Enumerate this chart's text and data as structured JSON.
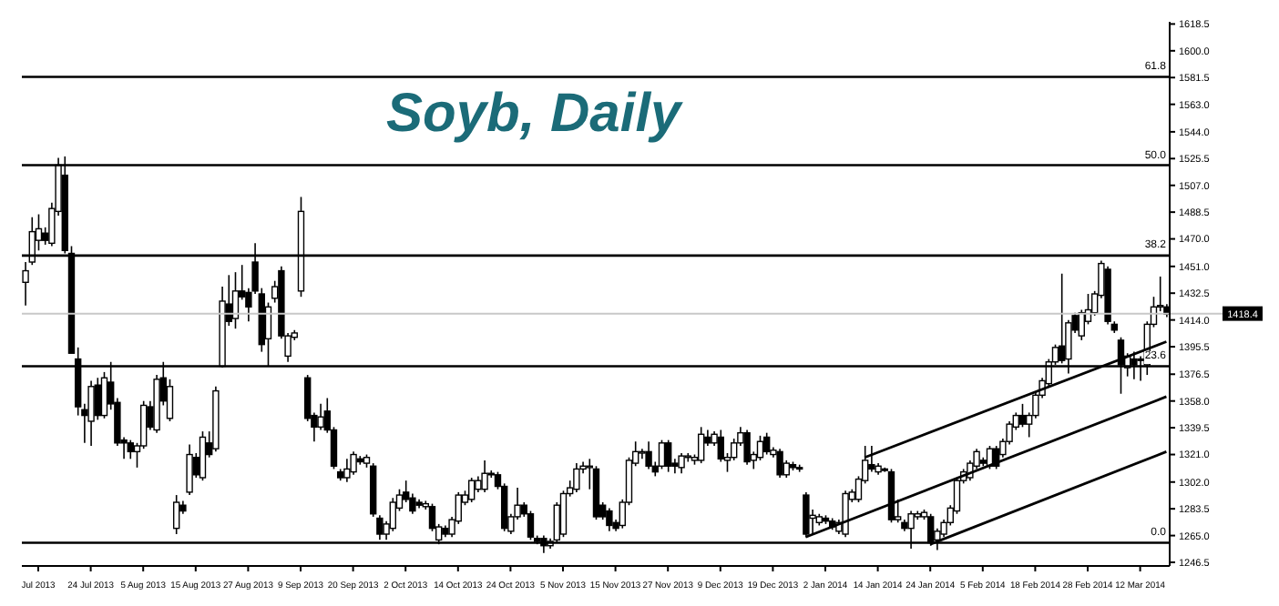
{
  "chart_data": {
    "type": "candlestick",
    "title": "Soyb, Daily",
    "color": "#000000",
    "categories": [
      null,
      null,
      "Jul 2013",
      null,
      null,
      null,
      null,
      null,
      null,
      null,
      "24 Jul 2013",
      null,
      null,
      null,
      null,
      null,
      null,
      null,
      "5 Aug 2013",
      null,
      null,
      null,
      null,
      null,
      null,
      null,
      "15 Aug 2013",
      null,
      null,
      null,
      null,
      null,
      null,
      null,
      "27 Aug 2013",
      null,
      null,
      null,
      null,
      null,
      null,
      null,
      "9 Sep 2013",
      null,
      null,
      null,
      null,
      null,
      null,
      null,
      "20 Sep 2013",
      null,
      null,
      null,
      null,
      null,
      null,
      null,
      "2 Oct 2013",
      null,
      null,
      null,
      null,
      null,
      null,
      null,
      "14 Oct 2013",
      null,
      null,
      null,
      null,
      null,
      null,
      null,
      "24 Oct 2013",
      null,
      null,
      null,
      null,
      null,
      null,
      null,
      "5 Nov 2013",
      null,
      null,
      null,
      null,
      null,
      null,
      null,
      "15 Nov 2013",
      null,
      null,
      null,
      null,
      null,
      null,
      null,
      "27 Nov 2013",
      null,
      null,
      null,
      null,
      null,
      null,
      null,
      "9 Dec 2013",
      null,
      null,
      null,
      null,
      null,
      null,
      null,
      "19 Dec 2013",
      null,
      null,
      null,
      null,
      null,
      null,
      null,
      "2 Jan 2014",
      null,
      null,
      null,
      null,
      null,
      null,
      null,
      "14 Jan 2014",
      null,
      null,
      null,
      null,
      null,
      null,
      null,
      "24 Jan 2014",
      null,
      null,
      null,
      null,
      null,
      null,
      null,
      "5 Feb 2014",
      null,
      null,
      null,
      null,
      null,
      null,
      null,
      "18 Feb 2014",
      null,
      null,
      null,
      null,
      null,
      null,
      null,
      "28 Feb 2014",
      null,
      null,
      null,
      null,
      null,
      null,
      null,
      "12 Mar 2014",
      null,
      null,
      null,
      null
    ],
    "ohlc": [
      [
        1440,
        1454,
        1424,
        1448
      ],
      [
        1454,
        1485,
        1452,
        1475
      ],
      [
        1469,
        1487,
        1462,
        1477
      ],
      [
        1474,
        1478,
        1466,
        1469
      ],
      [
        1467,
        1495,
        1465,
        1491
      ],
      [
        1489,
        1526,
        1486,
        1521
      ],
      [
        1514,
        1527,
        1460,
        1462
      ],
      [
        1460,
        1465,
        1391,
        1391
      ],
      [
        1387,
        1395,
        1348,
        1354
      ],
      [
        1352,
        1356,
        1329,
        1348
      ],
      [
        1344,
        1372,
        1327,
        1368
      ],
      [
        1369,
        1374,
        1345,
        1348
      ],
      [
        1348,
        1378,
        1346,
        1374
      ],
      [
        1371,
        1385,
        1352,
        1356
      ],
      [
        1357,
        1360,
        1327,
        1329
      ],
      [
        1331,
        1333,
        1318,
        1329
      ],
      [
        1329,
        1331,
        1318,
        1323
      ],
      [
        1323,
        1329,
        1312,
        1327
      ],
      [
        1327,
        1358,
        1325,
        1355
      ],
      [
        1354,
        1358,
        1338,
        1340
      ],
      [
        1338,
        1376,
        1336,
        1373
      ],
      [
        1374,
        1385,
        1355,
        1358
      ],
      [
        1346,
        1373,
        1344,
        1368
      ],
      [
        1270,
        1293,
        1266,
        1288
      ],
      [
        1286,
        1289,
        1280,
        1282
      ],
      [
        1295,
        1328,
        1293,
        1321
      ],
      [
        1319,
        1322,
        1305,
        1307
      ],
      [
        1305,
        1337,
        1303,
        1333
      ],
      [
        1329,
        1337,
        1319,
        1321
      ],
      [
        1325,
        1368,
        1323,
        1365
      ],
      [
        1382,
        1437,
        1381,
        1427
      ],
      [
        1425,
        1445,
        1410,
        1413
      ],
      [
        1415,
        1447,
        1408,
        1434
      ],
      [
        1434,
        1452,
        1428,
        1430
      ],
      [
        1433,
        1436,
        1413,
        1423
      ],
      [
        1454,
        1467,
        1432,
        1434
      ],
      [
        1432,
        1436,
        1392,
        1397
      ],
      [
        1401,
        1426,
        1382,
        1423
      ],
      [
        1429,
        1441,
        1426,
        1437
      ],
      [
        1448,
        1451,
        1401,
        1403
      ],
      [
        1389,
        1405,
        1385,
        1403
      ],
      [
        1402,
        1407,
        1400,
        1405
      ],
      [
        1434,
        1499,
        1430,
        1489
      ],
      [
        1374,
        1376,
        1344,
        1346
      ],
      [
        1348,
        1350,
        1330,
        1340
      ],
      [
        1340,
        1356,
        1338,
        1347
      ],
      [
        1351,
        1360,
        1336,
        1338
      ],
      [
        1338,
        1340,
        1311,
        1313
      ],
      [
        1309,
        1311,
        1303,
        1305
      ],
      [
        1305,
        1318,
        1302,
        1311
      ],
      [
        1309,
        1323,
        1307,
        1321
      ],
      [
        1318,
        1320,
        1314,
        1316
      ],
      [
        1315,
        1321,
        1312,
        1319
      ],
      [
        1313,
        1315,
        1278,
        1280
      ],
      [
        1277,
        1279,
        1262,
        1266
      ],
      [
        1266,
        1275,
        1262,
        1273
      ],
      [
        1270,
        1291,
        1268,
        1288
      ],
      [
        1284,
        1297,
        1282,
        1293
      ],
      [
        1295,
        1303,
        1288,
        1290
      ],
      [
        1291,
        1294,
        1280,
        1282
      ],
      [
        1288,
        1290,
        1284,
        1286
      ],
      [
        1285,
        1289,
        1283,
        1287
      ],
      [
        1285,
        1287,
        1268,
        1270
      ],
      [
        1262,
        1273,
        1259,
        1271
      ],
      [
        1270,
        1272,
        1264,
        1266
      ],
      [
        1266,
        1278,
        1264,
        1276
      ],
      [
        1275,
        1295,
        1273,
        1293
      ],
      [
        1288,
        1296,
        1286,
        1293
      ],
      [
        1290,
        1305,
        1288,
        1303
      ],
      [
        1297,
        1306,
        1295,
        1303
      ],
      [
        1297,
        1317,
        1295,
        1308
      ],
      [
        1308,
        1310,
        1305,
        1307
      ],
      [
        1307,
        1309,
        1297,
        1299
      ],
      [
        1299,
        1301,
        1268,
        1270
      ],
      [
        1268,
        1280,
        1266,
        1278
      ],
      [
        1278,
        1298,
        1276,
        1286
      ],
      [
        1286,
        1288,
        1278,
        1280
      ],
      [
        1280,
        1282,
        1262,
        1264
      ],
      [
        1263,
        1265,
        1259,
        1261
      ],
      [
        1263,
        1265,
        1253,
        1258
      ],
      [
        1258,
        1263,
        1256,
        1261
      ],
      [
        1262,
        1288,
        1260,
        1286
      ],
      [
        1266,
        1296,
        1264,
        1294
      ],
      [
        1294,
        1303,
        1292,
        1298
      ],
      [
        1297,
        1315,
        1295,
        1311
      ],
      [
        1311,
        1316,
        1308,
        1313
      ],
      [
        1312,
        1318,
        1297,
        1313
      ],
      [
        1311,
        1313,
        1276,
        1278
      ],
      [
        1286,
        1288,
        1276,
        1278
      ],
      [
        1282,
        1284,
        1268,
        1272
      ],
      [
        1274,
        1276,
        1268,
        1270
      ],
      [
        1272,
        1290,
        1270,
        1288
      ],
      [
        1288,
        1319,
        1286,
        1317
      ],
      [
        1315,
        1330,
        1313,
        1323
      ],
      [
        1322,
        1325,
        1318,
        1323
      ],
      [
        1323,
        1330,
        1311,
        1313
      ],
      [
        1313,
        1316,
        1306,
        1309
      ],
      [
        1313,
        1331,
        1311,
        1329
      ],
      [
        1329,
        1331,
        1309,
        1313
      ],
      [
        1315,
        1318,
        1308,
        1313
      ],
      [
        1312,
        1322,
        1308,
        1320
      ],
      [
        1319,
        1322,
        1316,
        1320
      ],
      [
        1317,
        1321,
        1314,
        1319
      ],
      [
        1317,
        1340,
        1315,
        1335
      ],
      [
        1333,
        1338,
        1327,
        1329
      ],
      [
        1329,
        1337,
        1327,
        1335
      ],
      [
        1333,
        1338,
        1316,
        1318
      ],
      [
        1317,
        1322,
        1309,
        1319
      ],
      [
        1319,
        1332,
        1317,
        1329
      ],
      [
        1329,
        1340,
        1327,
        1336
      ],
      [
        1336,
        1338,
        1314,
        1316
      ],
      [
        1317,
        1323,
        1311,
        1321
      ],
      [
        1319,
        1334,
        1317,
        1330
      ],
      [
        1333,
        1336,
        1321,
        1323
      ],
      [
        1321,
        1326,
        1319,
        1324
      ],
      [
        1323,
        1325,
        1305,
        1307
      ],
      [
        1307,
        1317,
        1305,
        1315
      ],
      [
        1314,
        1316,
        1310,
        1312
      ],
      [
        1312,
        1314,
        1309,
        1311
      ],
      [
        1293,
        1295,
        1264,
        1266
      ],
      [
        1277,
        1283,
        1266,
        1279
      ],
      [
        1274,
        1280,
        1272,
        1278
      ],
      [
        1277,
        1279,
        1273,
        1275
      ],
      [
        1275,
        1277,
        1269,
        1271
      ],
      [
        1268,
        1276,
        1266,
        1274
      ],
      [
        1266,
        1296,
        1264,
        1294
      ],
      [
        1290,
        1297,
        1288,
        1295
      ],
      [
        1290,
        1306,
        1288,
        1304
      ],
      [
        1303,
        1327,
        1301,
        1317
      ],
      [
        1314,
        1327,
        1309,
        1311
      ],
      [
        1309,
        1315,
        1307,
        1313
      ],
      [
        1311,
        1312,
        1309,
        1310
      ],
      [
        1309,
        1311,
        1274,
        1276
      ],
      [
        1276,
        1290,
        1274,
        1278
      ],
      [
        1274,
        1276,
        1268,
        1270
      ],
      [
        1270,
        1282,
        1256,
        1280
      ],
      [
        1278,
        1282,
        1276,
        1280
      ],
      [
        1278,
        1283,
        1276,
        1281
      ],
      [
        1278,
        1280,
        1258,
        1260
      ],
      [
        1262,
        1270,
        1255,
        1268
      ],
      [
        1266,
        1276,
        1264,
        1274
      ],
      [
        1274,
        1286,
        1272,
        1284
      ],
      [
        1282,
        1305,
        1280,
        1303
      ],
      [
        1303,
        1311,
        1301,
        1309
      ],
      [
        1305,
        1317,
        1303,
        1315
      ],
      [
        1313,
        1325,
        1311,
        1323
      ],
      [
        1317,
        1319,
        1313,
        1315
      ],
      [
        1313,
        1327,
        1311,
        1325
      ],
      [
        1325,
        1327,
        1311,
        1313
      ],
      [
        1321,
        1332,
        1319,
        1330
      ],
      [
        1330,
        1344,
        1328,
        1342
      ],
      [
        1340,
        1350,
        1338,
        1348
      ],
      [
        1348,
        1356,
        1340,
        1342
      ],
      [
        1342,
        1350,
        1333,
        1348
      ],
      [
        1348,
        1364,
        1346,
        1362
      ],
      [
        1362,
        1374,
        1360,
        1372
      ],
      [
        1370,
        1387,
        1368,
        1385
      ],
      [
        1385,
        1397,
        1383,
        1395
      ],
      [
        1396,
        1446,
        1384,
        1386
      ],
      [
        1387,
        1414,
        1377,
        1412
      ],
      [
        1417,
        1419,
        1405,
        1407
      ],
      [
        1403,
        1421,
        1400,
        1419
      ],
      [
        1413,
        1432,
        1411,
        1421
      ],
      [
        1419,
        1434,
        1417,
        1432
      ],
      [
        1431,
        1455,
        1429,
        1453
      ],
      [
        1449,
        1451,
        1411,
        1413
      ],
      [
        1411,
        1413,
        1405,
        1407
      ],
      [
        1400,
        1402,
        1363,
        1383
      ],
      [
        1381,
        1391,
        1375,
        1389
      ],
      [
        1387,
        1392,
        1373,
        1383
      ],
      [
        1387,
        1389,
        1372,
        1386
      ],
      [
        1383,
        1413,
        1376,
        1411
      ],
      [
        1411,
        1430,
        1409,
        1423
      ],
      [
        1423,
        1444,
        1420,
        1424
      ],
      [
        1423,
        1425,
        1416,
        1418
      ]
    ],
    "series": [
      {
        "type": "line",
        "color": "#000000",
        "values": [
          null,
          null,
          null,
          null,
          null,
          null,
          null,
          null,
          null,
          null,
          null,
          null,
          null,
          null,
          null,
          null,
          null,
          null,
          null,
          null,
          null,
          null,
          null,
          null,
          null,
          null,
          null,
          null,
          null,
          null,
          null,
          null,
          null,
          null,
          null,
          null,
          null,
          null,
          null,
          null,
          null,
          null,
          null,
          null,
          null,
          null,
          null,
          null,
          null,
          null,
          null,
          null,
          null,
          null,
          null,
          null,
          null,
          null,
          null,
          null,
          null,
          null,
          null,
          null,
          null,
          null,
          null,
          null,
          null,
          null,
          null,
          null,
          null,
          null,
          null,
          null,
          null,
          null,
          null,
          null,
          null,
          null,
          null,
          null,
          null,
          null,
          null,
          null,
          null,
          null,
          null,
          null,
          null,
          null,
          null,
          null,
          null,
          null,
          null,
          null,
          null,
          null,
          null,
          null,
          null,
          null,
          null,
          null,
          null,
          null,
          null,
          null,
          null,
          null,
          null,
          null,
          null,
          null,
          null,
          1264,
          null,
          null,
          null,
          null,
          null,
          null,
          null,
          null,
          null,
          null,
          null,
          null,
          null,
          null,
          null,
          null,
          null,
          null,
          null,
          null,
          null,
          null,
          null,
          null,
          null,
          null,
          null,
          null,
          null,
          null,
          null,
          null,
          null,
          null,
          null,
          null,
          null,
          null,
          null,
          null,
          null,
          null,
          null,
          null,
          null,
          null,
          null,
          null,
          null,
          null,
          null,
          null,
          null,
          null,
          1361
        ]
      },
      {
        "type": "line",
        "color": "#000000",
        "values": [
          null,
          null,
          null,
          null,
          null,
          null,
          null,
          null,
          null,
          null,
          null,
          null,
          null,
          null,
          null,
          null,
          null,
          null,
          null,
          null,
          null,
          null,
          null,
          null,
          null,
          null,
          null,
          null,
          null,
          null,
          null,
          null,
          null,
          null,
          null,
          null,
          null,
          null,
          null,
          null,
          null,
          null,
          null,
          null,
          null,
          null,
          null,
          null,
          null,
          null,
          null,
          null,
          null,
          null,
          null,
          null,
          null,
          null,
          null,
          null,
          null,
          null,
          null,
          null,
          null,
          null,
          null,
          null,
          null,
          null,
          null,
          null,
          null,
          null,
          null,
          null,
          null,
          null,
          null,
          null,
          null,
          null,
          null,
          null,
          null,
          null,
          null,
          null,
          null,
          null,
          null,
          null,
          null,
          null,
          null,
          null,
          null,
          null,
          null,
          null,
          null,
          null,
          null,
          null,
          null,
          null,
          null,
          null,
          null,
          null,
          null,
          null,
          null,
          null,
          null,
          null,
          null,
          null,
          null,
          null,
          null,
          null,
          null,
          null,
          null,
          null,
          null,
          null,
          1319,
          null,
          null,
          null,
          null,
          null,
          null,
          null,
          null,
          null,
          null,
          null,
          null,
          null,
          null,
          null,
          null,
          null,
          null,
          null,
          null,
          null,
          null,
          null,
          null,
          null,
          null,
          null,
          null,
          null,
          null,
          null,
          null,
          null,
          null,
          null,
          null,
          null,
          null,
          null,
          null,
          null,
          null,
          null,
          null,
          null,
          1399
        ]
      },
      {
        "type": "line",
        "color": "#000000",
        "values": [
          null,
          null,
          null,
          null,
          null,
          null,
          null,
          null,
          null,
          null,
          null,
          null,
          null,
          null,
          null,
          null,
          null,
          null,
          null,
          null,
          null,
          null,
          null,
          null,
          null,
          null,
          null,
          null,
          null,
          null,
          null,
          null,
          null,
          null,
          null,
          null,
          null,
          null,
          null,
          null,
          null,
          null,
          null,
          null,
          null,
          null,
          null,
          null,
          null,
          null,
          null,
          null,
          null,
          null,
          null,
          null,
          null,
          null,
          null,
          null,
          null,
          null,
          null,
          null,
          null,
          null,
          null,
          null,
          null,
          null,
          null,
          null,
          null,
          null,
          null,
          null,
          null,
          null,
          null,
          null,
          null,
          null,
          null,
          null,
          null,
          null,
          null,
          null,
          null,
          null,
          null,
          null,
          null,
          null,
          null,
          null,
          null,
          null,
          null,
          null,
          null,
          null,
          null,
          null,
          null,
          null,
          null,
          null,
          null,
          null,
          null,
          null,
          null,
          null,
          null,
          null,
          null,
          null,
          null,
          null,
          null,
          null,
          null,
          null,
          null,
          null,
          null,
          null,
          null,
          null,
          null,
          null,
          null,
          null,
          null,
          null,
          null,
          null,
          1259,
          null,
          null,
          null,
          null,
          null,
          null,
          null,
          null,
          null,
          null,
          null,
          null,
          null,
          null,
          null,
          null,
          null,
          null,
          null,
          null,
          null,
          null,
          null,
          null,
          null,
          null,
          null,
          null,
          null,
          null,
          null,
          null,
          null,
          null,
          null,
          1323
        ]
      }
    ],
    "ylim": [
      1244,
      1620
    ],
    "yticks": [
      {
        "value": 1246.5,
        "label": "1246.5"
      },
      {
        "value": 1265,
        "label": "1265.0"
      },
      1283.5,
      {
        "value": 1302,
        "label": "1302.0"
      },
      {
        "value": 1321,
        "label": "1321.0"
      },
      1339.5,
      {
        "value": 1358,
        "label": "1358.0"
      },
      1376.5,
      1395.5,
      {
        "value": 1414,
        "label": "1414.0"
      },
      1432.5,
      {
        "value": 1451,
        "label": "1451.0"
      },
      {
        "value": 1470,
        "label": "1470.0"
      },
      1488.5,
      {
        "value": 1507,
        "label": "1507.0"
      },
      1525.5,
      {
        "value": 1544,
        "label": "1544.0"
      },
      {
        "value": 1563,
        "label": "1563.0"
      },
      1581.5,
      {
        "value": 1600,
        "label": "1600.0"
      },
      1618.5
    ],
    "ref_lines": [
      {
        "axis": "y",
        "value": 1260
      },
      {
        "axis": "y",
        "value": 1382
      },
      {
        "axis": "y",
        "value": 1458.5
      },
      {
        "axis": "y",
        "value": 1521
      },
      {
        "axis": "y",
        "value": 1582
      },
      {
        "axis": "y",
        "value": 1418.4,
        "label": "1418.4",
        "color": "#c8c8c8"
      }
    ],
    "annotations": [
      {
        "text": "0.0",
        "y": 1260
      },
      {
        "text": "23.6",
        "y": 1382
      },
      {
        "text": "38.2",
        "y": 1458.5
      },
      {
        "text": "50.0",
        "y": 1521
      },
      {
        "text": "61.8",
        "y": 1582
      }
    ]
  }
}
